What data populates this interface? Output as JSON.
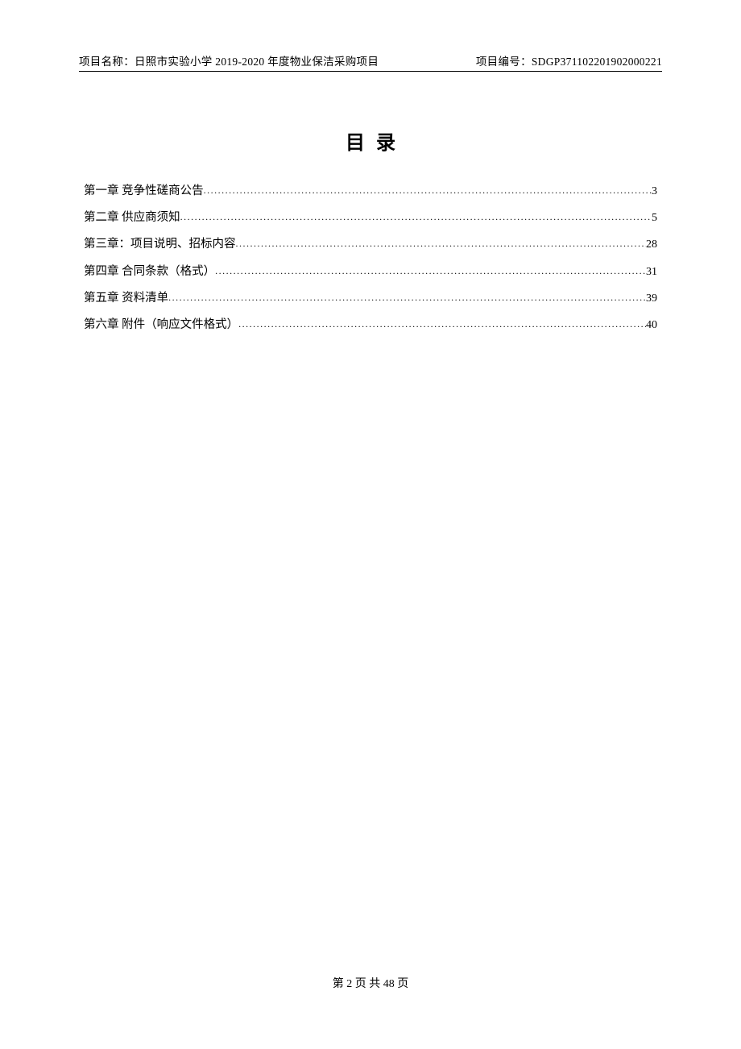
{
  "header": {
    "project_name_label": "项目名称：",
    "project_name": "日照市实验小学 2019-2020 年度物业保洁采购项目",
    "project_code_label": "项目编号：",
    "project_code": "SDGP371102201902000221"
  },
  "title": "目录",
  "toc": {
    "items": [
      {
        "label": "第一章   竞争性磋商公告",
        "page": "3"
      },
      {
        "label": "第二章   供应商须知",
        "page": "5"
      },
      {
        "label": "第三章：项目说明、招标内容",
        "page": "28"
      },
      {
        "label": "第四章   合同条款（格式）",
        "page": "31"
      },
      {
        "label": "第五章   资料清单",
        "page": "39"
      },
      {
        "label": "第六章   附件（响应文件格式）",
        "page": "40"
      }
    ]
  },
  "footer": {
    "page_current": "2",
    "page_total": "48",
    "prefix": "第 ",
    "middle": " 页  共 ",
    "suffix": " 页"
  },
  "colors": {
    "background": "#ffffff",
    "text": "#000000",
    "border": "#000000"
  },
  "typography": {
    "header_fontsize": 13.5,
    "title_fontsize": 24,
    "toc_fontsize": 14.5,
    "footer_fontsize": 14,
    "font_family": "SimSun"
  }
}
